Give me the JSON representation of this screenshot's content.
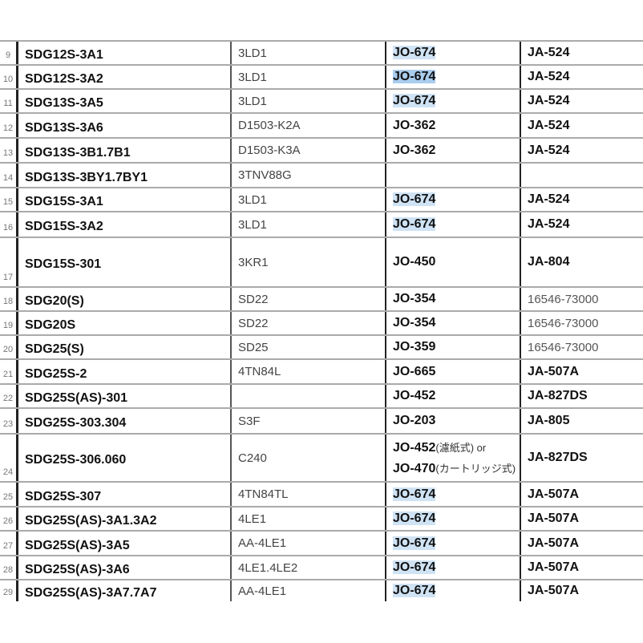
{
  "rows": [
    {
      "n": "9",
      "model": "SDG12S-3A1",
      "engine": "3LD1",
      "oil": "JO-674",
      "hl": 1,
      "air": "JA-524",
      "h": 30
    },
    {
      "n": "10",
      "model": "SDG12S-3A2",
      "engine": "3LD1",
      "oil": "JO-674",
      "hl": 2,
      "air": "JA-524",
      "h": 30
    },
    {
      "n": "11",
      "model": "SDG13S-3A5",
      "engine": "3LD1",
      "oil": "JO-674",
      "hl": 1,
      "air": "JA-524",
      "h": 30
    },
    {
      "n": "12",
      "model": "SDG13S-3A6",
      "engine": "D1503-K2A",
      "oil": "JO-362",
      "hl": 0,
      "air": "JA-524",
      "h": 31
    },
    {
      "n": "13",
      "model": "SDG13S-3B1.7B1",
      "engine": "D1503-K3A",
      "oil": "JO-362",
      "hl": 0,
      "air": "JA-524",
      "h": 31
    },
    {
      "n": "14",
      "model": "SDG13S-3BY1.7BY1",
      "engine": "3TNV88G",
      "oil": "",
      "hl": 0,
      "air": "",
      "h": 31
    },
    {
      "n": "15",
      "model": "SDG15S-3A1",
      "engine": "3LD1",
      "oil": "JO-674",
      "hl": 1,
      "air": "JA-524",
      "h": 30
    },
    {
      "n": "16",
      "model": "SDG15S-3A2",
      "engine": "3LD1",
      "oil": "JO-674",
      "hl": 1,
      "air": "JA-524",
      "h": 32
    },
    {
      "n": "17",
      "model": "SDG15S-301",
      "engine": "3KR1",
      "oil": "JO-450",
      "hl": 0,
      "air": "JA-804",
      "h": 62
    },
    {
      "n": "18",
      "model": "SDG20(S)",
      "engine": "SD22",
      "oil": "JO-354",
      "hl": 0,
      "air": "16546-73000",
      "airn": 1,
      "h": 30
    },
    {
      "n": "19",
      "model": "SDG20S",
      "engine": "SD22",
      "oil": "JO-354",
      "hl": 0,
      "air": "16546-73000",
      "airn": 1,
      "h": 30
    },
    {
      "n": "20",
      "model": "SDG25(S)",
      "engine": "SD25",
      "oil": "JO-359",
      "hl": 0,
      "air": "16546-73000",
      "airn": 1,
      "h": 30
    },
    {
      "n": "21",
      "model": "SDG25S-2",
      "engine": "4TN84L",
      "oil": "JO-665",
      "hl": 0,
      "air": "JA-507A",
      "h": 31
    },
    {
      "n": "22",
      "model": "SDG25S(AS)-301",
      "engine": "",
      "oil": "JO-452",
      "hl": 0,
      "air": "JA-827DS",
      "h": 30
    },
    {
      "n": "23",
      "model": "SDG25S-303.304",
      "engine": "S3F",
      "oil": "JO-203",
      "hl": 0,
      "air": "JA-805",
      "h": 32
    },
    {
      "n": "24",
      "model": "SDG25S-306.060",
      "engine": "C240",
      "oil": "JO-452",
      "oil_note": "(濾紙式) or",
      "oil2": "JO-470",
      "oil2_note": "(カートリッジ式)",
      "hl": 0,
      "air": "JA-827DS",
      "h": 60
    },
    {
      "n": "25",
      "model": "SDG25S-307",
      "engine": "4TN84TL",
      "oil": "JO-674",
      "hl": 1,
      "air": "JA-507A",
      "h": 31
    },
    {
      "n": "26",
      "model": "SDG25S(AS)-3A1.3A2",
      "engine": "4LE1",
      "oil": "JO-674",
      "hl": 1,
      "air": "JA-507A",
      "h": 30
    },
    {
      "n": "27",
      "model": "SDG25S(AS)-3A5",
      "engine": "AA-4LE1",
      "oil": "JO-674",
      "hl": 1,
      "air": "JA-507A",
      "h": 31
    },
    {
      "n": "28",
      "model": "SDG25S(AS)-3A6",
      "engine": "4LE1.4LE2",
      "oil": "JO-674",
      "hl": 1,
      "air": "JA-507A",
      "h": 30
    },
    {
      "n": "29",
      "model": "SDG25S(AS)-3A7.7A7",
      "engine": "AA-4LE1",
      "oil": "JO-674",
      "hl": 1,
      "air": "JA-507A",
      "h": 28
    }
  ],
  "colors": {
    "highlight": "#cfe3f5",
    "highlight_selected": "#a9cdee"
  }
}
